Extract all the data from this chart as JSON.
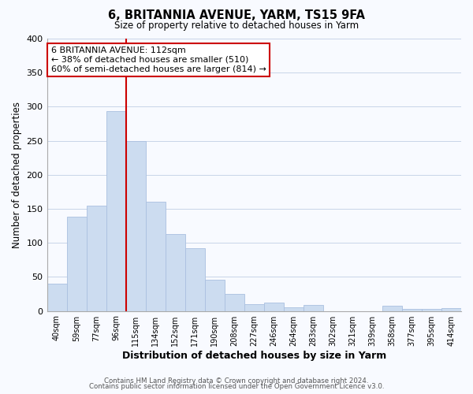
{
  "title": "6, BRITANNIA AVENUE, YARM, TS15 9FA",
  "subtitle": "Size of property relative to detached houses in Yarm",
  "xlabel": "Distribution of detached houses by size in Yarm",
  "ylabel": "Number of detached properties",
  "bar_labels": [
    "40sqm",
    "59sqm",
    "77sqm",
    "96sqm",
    "115sqm",
    "134sqm",
    "152sqm",
    "171sqm",
    "190sqm",
    "208sqm",
    "227sqm",
    "246sqm",
    "264sqm",
    "283sqm",
    "302sqm",
    "321sqm",
    "339sqm",
    "358sqm",
    "377sqm",
    "395sqm",
    "414sqm"
  ],
  "bar_values": [
    40,
    138,
    155,
    293,
    250,
    160,
    113,
    92,
    46,
    25,
    10,
    12,
    5,
    9,
    0,
    0,
    0,
    8,
    3,
    3,
    4
  ],
  "bar_color": "#ccdcf0",
  "bar_edge_color": "#aac0e0",
  "vline_x_index": 4,
  "vline_color": "#cc0000",
  "annotation_title": "6 BRITANNIA AVENUE: 112sqm",
  "annotation_line1": "← 38% of detached houses are smaller (510)",
  "annotation_line2": "60% of semi-detached houses are larger (814) →",
  "annotation_box_color": "#ffffff",
  "annotation_box_edge": "#cc0000",
  "footer1": "Contains HM Land Registry data © Crown copyright and database right 2024.",
  "footer2": "Contains public sector information licensed under the Open Government Licence v3.0.",
  "ylim": [
    0,
    400
  ],
  "yticks": [
    0,
    50,
    100,
    150,
    200,
    250,
    300,
    350,
    400
  ],
  "background_color": "#f8faff",
  "grid_color": "#c8d4e8"
}
